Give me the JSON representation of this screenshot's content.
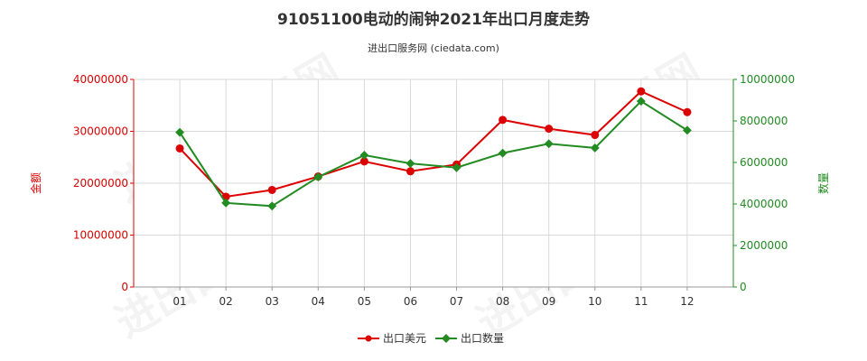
{
  "chart_data": {
    "type": "line",
    "title": "91051100电动的闹钟2021年出口月度走势",
    "subtitle": "进出口服务网 (ciedata.com)",
    "watermark": "进出口服务网",
    "categories": [
      "01",
      "02",
      "03",
      "04",
      "05",
      "06",
      "07",
      "08",
      "09",
      "10",
      "11",
      "12"
    ],
    "y_left": {
      "label": "金额",
      "range": [
        0,
        40000000
      ],
      "ticks": [
        "0",
        "10000000",
        "20000000",
        "30000000",
        "40000000"
      ],
      "color": "#dd0000"
    },
    "y_right": {
      "label": "数量",
      "range": [
        0,
        10000000
      ],
      "ticks": [
        "0",
        "2000000",
        "4000000",
        "6000000",
        "8000000",
        "10000000"
      ],
      "color": "#228b22"
    },
    "grid": true,
    "legend_position": "bottom-center",
    "series": [
      {
        "name": "出口美元",
        "axis": "left",
        "color": "#dd0000",
        "values": [
          26700000,
          17400000,
          18700000,
          21300000,
          24200000,
          22300000,
          23600000,
          32200000,
          30500000,
          29300000,
          37700000,
          33700000
        ]
      },
      {
        "name": "出口数量",
        "axis": "right",
        "color": "#228b22",
        "values": [
          7450000,
          4050000,
          3900000,
          5300000,
          6350000,
          5950000,
          5750000,
          6450000,
          6900000,
          6700000,
          8950000,
          7550000
        ]
      }
    ]
  }
}
